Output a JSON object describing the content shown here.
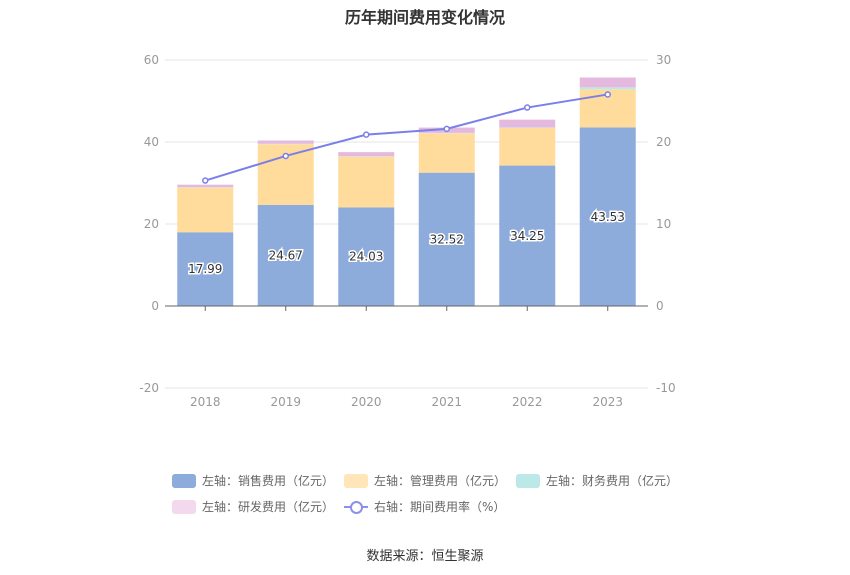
{
  "chart_data": {
    "type": "bar",
    "title": "历年期间费用变化情况",
    "categories": [
      "2018",
      "2019",
      "2020",
      "2021",
      "2022",
      "2023"
    ],
    "left_axis": {
      "ylim": [
        -20,
        60
      ],
      "ticks": [
        "-20",
        "0",
        "20",
        "40",
        "60"
      ]
    },
    "right_axis": {
      "ylim": [
        -10,
        30
      ],
      "ticks": [
        "-10",
        "0",
        "10",
        "20",
        "30"
      ]
    },
    "series": [
      {
        "name": "左轴：销售费用（亿元）",
        "axis": "left",
        "type": "bar",
        "color": "#8eacdb",
        "values": [
          17.99,
          24.67,
          24.03,
          32.52,
          34.25,
          43.53
        ],
        "labels": [
          "17.99",
          "24.67",
          "24.03",
          "32.52",
          "34.25",
          "43.53"
        ]
      },
      {
        "name": "左轴：管理费用（亿元）",
        "axis": "left",
        "type": "bar",
        "color": "#ffdb9c",
        "values": [
          10.9,
          14.8,
          12.4,
          9.6,
          9.2,
          9.3
        ]
      },
      {
        "name": "左轴：财务费用（亿元）",
        "axis": "left",
        "type": "bar",
        "color": "#bde8e8",
        "values": [
          0.1,
          0.1,
          0.1,
          0.1,
          0.1,
          0.5
        ]
      },
      {
        "name": "左轴：研发费用（亿元）",
        "axis": "left",
        "type": "bar",
        "color": "#e4b9dd",
        "values": [
          0.6,
          0.8,
          1.0,
          1.3,
          1.9,
          2.4
        ]
      },
      {
        "name": "右轴：期间费用率（%）",
        "axis": "right",
        "type": "line",
        "color": "#7b7fe8",
        "values": [
          15.3,
          18.3,
          20.9,
          21.6,
          24.2,
          25.8
        ]
      }
    ],
    "grid": true,
    "legend_position": "bottom"
  },
  "source": "数据来源：恒生聚源"
}
